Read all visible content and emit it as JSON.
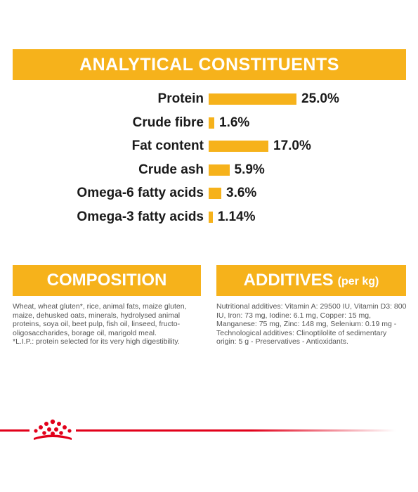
{
  "analytical": {
    "title": "ANALYTICAL CONSTITUENTS"
  },
  "chart_data": {
    "type": "bar",
    "orientation": "horizontal",
    "categories": [
      "Protein",
      "Crude fibre",
      "Fat content",
      "Crude ash",
      "Omega-6 fatty acids",
      "Omega-3 fatty acids"
    ],
    "values": [
      25.0,
      1.6,
      17.0,
      5.9,
      3.6,
      1.14
    ],
    "value_labels": [
      "25.0%",
      "1.6%",
      "17.0%",
      "5.9%",
      "3.6%",
      "1.14%"
    ],
    "bar_color": "#f6b21b",
    "grid": false
  },
  "composition": {
    "title": "COMPOSITION",
    "lines": [
      "Wheat, wheat gluten*, rice, animal fats, maize gluten,",
      "maize, dehusked oats, minerals, hydrolysed animal",
      "proteins, soya oil, beet pulp, fish oil, linseed, fructo-",
      "oligosaccharides, borage oil, marigold meal.",
      "*L.I.P.: protein selected for its very high digestibility."
    ]
  },
  "additives": {
    "title": "ADDITIVES",
    "subtitle": "(per kg)",
    "lines": [
      "Nutritional additives: Vitamin A: 29500 IU, Vitamin D3: 800",
      "IU, Iron: 73 mg, Iodine: 6.1 mg, Copper: 15 mg,",
      "Manganese: 75 mg, Zinc: 148 mg, Selenium: 0.19 mg -",
      "Technological additives: Clinoptilolite of sedimentary",
      "origin: 5 g - Preservatives - Antioxidants."
    ]
  },
  "colors": {
    "accent": "#f6b21b",
    "brand_red": "#e2001a",
    "text": "#1a1a1a"
  },
  "footer": {
    "logo_icon": "crown-icon"
  }
}
